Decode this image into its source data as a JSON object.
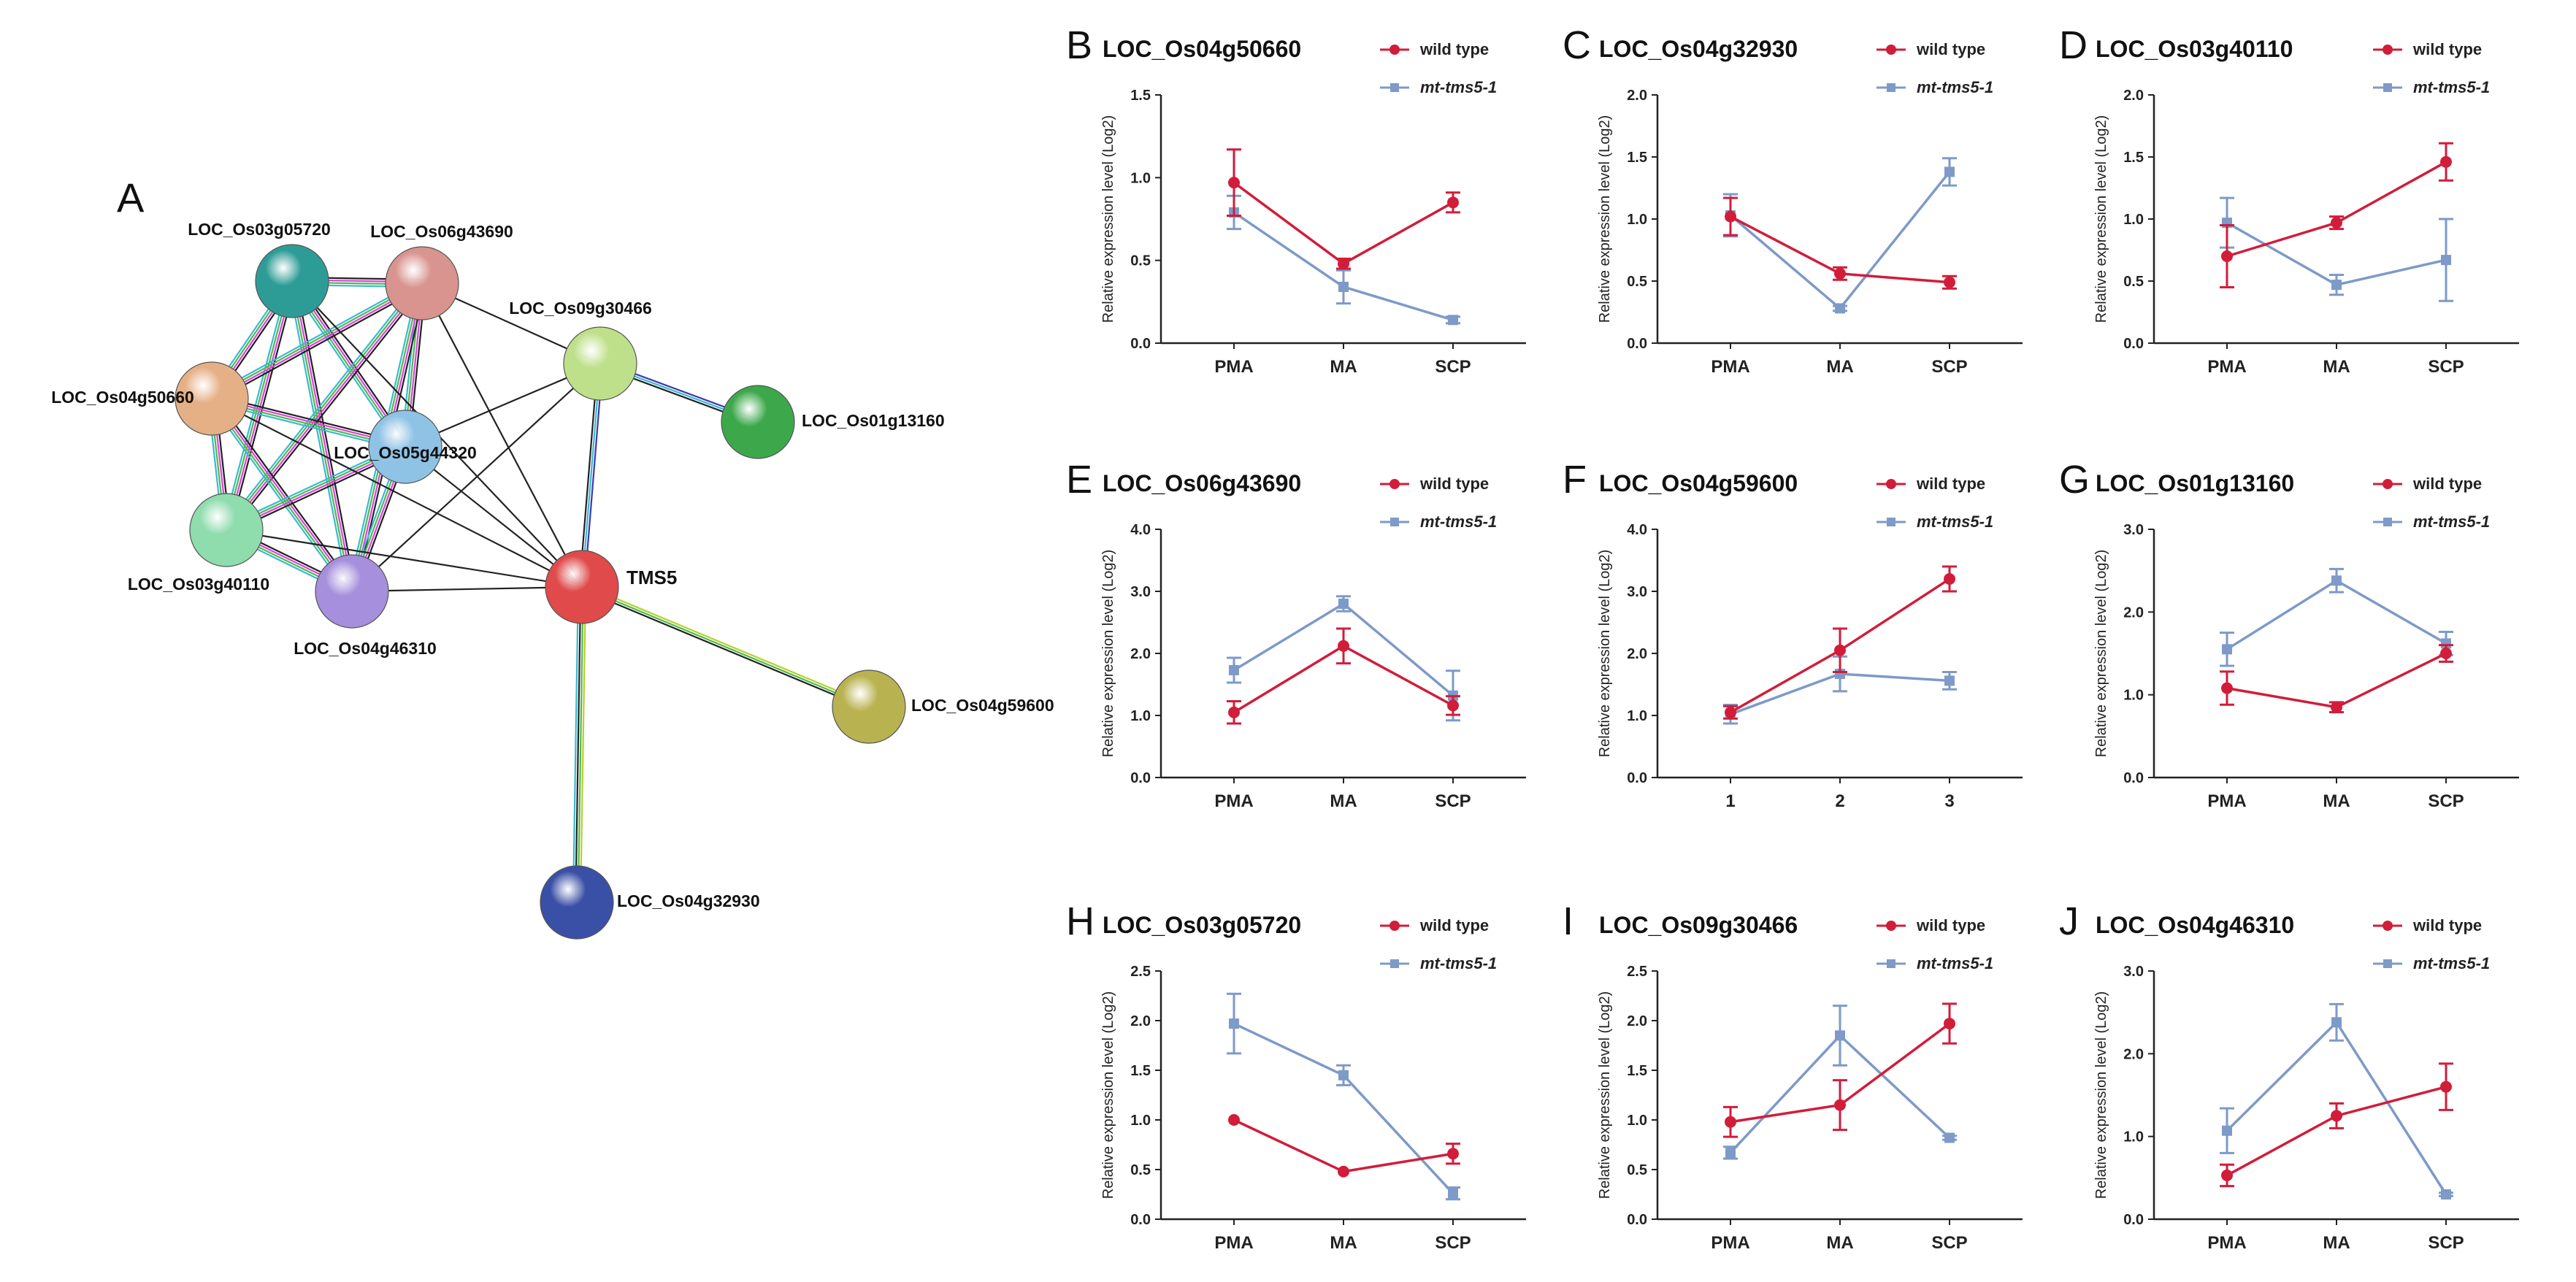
{
  "figure": {
    "network_letter": "A",
    "legend_wild": "wild type",
    "legend_mt": "mt-tms5-1",
    "colors": {
      "wild": "#d11d3a",
      "mt": "#7d9ac8",
      "axis": "#222222",
      "center_label": "#d9486f"
    }
  },
  "network": {
    "nodes": [
      {
        "id": "n_os03g05720",
        "label": "LOC_Os03g05720",
        "color": "#2e9c96"
      },
      {
        "id": "n_os06g43690",
        "label": "LOC_Os06g43690",
        "color": "#d9948f"
      },
      {
        "id": "n_os09g30466",
        "label": "LOC_Os09g30466",
        "color": "#bfe08a"
      },
      {
        "id": "n_os01g13160",
        "label": "LOC_Os01g13160",
        "color": "#3da84b"
      },
      {
        "id": "n_os04g50660",
        "label": "LOC_Os04g50660",
        "color": "#e6b086"
      },
      {
        "id": "n_os05g44320",
        "label": "LOC_Os05g44320",
        "color": "#8fc3e6"
      },
      {
        "id": "n_os03g40110",
        "label": "LOC_Os03g40110",
        "color": "#8fdcad"
      },
      {
        "id": "n_os04g46310",
        "label": "LOC_Os04g46310",
        "color": "#a68fdc"
      },
      {
        "id": "n_tms5",
        "label": "TMS5",
        "color": "#e04a4a"
      },
      {
        "id": "n_os04g59600",
        "label": "LOC_Os04g59600",
        "color": "#b9b250"
      },
      {
        "id": "n_os04g32930",
        "label": "LOC_Os04g32930",
        "color": "#3a4fa6"
      }
    ],
    "edges": [
      {
        "from": "n_os03g05720",
        "to": "n_os06g43690",
        "colors": [
          "#222222",
          "#e040e0",
          "#4dbb4d",
          "#3cb8d0"
        ]
      },
      {
        "from": "n_os03g05720",
        "to": "n_os04g50660",
        "colors": [
          "#222222",
          "#e040e0",
          "#4dbb4d",
          "#3cb8d0"
        ]
      },
      {
        "from": "n_os03g05720",
        "to": "n_os05g44320",
        "colors": [
          "#222222",
          "#e040e0",
          "#4dbb4d",
          "#3cb8d0"
        ]
      },
      {
        "from": "n_os03g05720",
        "to": "n_os03g40110",
        "colors": [
          "#222222",
          "#e040e0",
          "#4dbb4d",
          "#3cb8d0"
        ]
      },
      {
        "from": "n_os03g05720",
        "to": "n_os04g46310",
        "colors": [
          "#222222",
          "#e040e0",
          "#4dbb4d",
          "#3cb8d0"
        ]
      },
      {
        "from": "n_os06g43690",
        "to": "n_os04g50660",
        "colors": [
          "#222222",
          "#e040e0",
          "#4dbb4d",
          "#3cb8d0"
        ]
      },
      {
        "from": "n_os06g43690",
        "to": "n_os05g44320",
        "colors": [
          "#222222",
          "#e040e0",
          "#4dbb4d",
          "#3cb8d0"
        ]
      },
      {
        "from": "n_os06g43690",
        "to": "n_os03g40110",
        "colors": [
          "#222222",
          "#e040e0",
          "#4dbb4d",
          "#3cb8d0"
        ]
      },
      {
        "from": "n_os06g43690",
        "to": "n_os04g46310",
        "colors": [
          "#222222",
          "#e040e0",
          "#4dbb4d",
          "#3cb8d0"
        ]
      },
      {
        "from": "n_os04g50660",
        "to": "n_os05g44320",
        "colors": [
          "#222222",
          "#e040e0",
          "#4dbb4d",
          "#3cb8d0"
        ]
      },
      {
        "from": "n_os04g50660",
        "to": "n_os03g40110",
        "colors": [
          "#222222",
          "#e040e0",
          "#4dbb4d",
          "#3cb8d0"
        ]
      },
      {
        "from": "n_os04g50660",
        "to": "n_os04g46310",
        "colors": [
          "#222222",
          "#e040e0",
          "#4dbb4d",
          "#3cb8d0"
        ]
      },
      {
        "from": "n_os05g44320",
        "to": "n_os03g40110",
        "colors": [
          "#222222",
          "#e040e0",
          "#4dbb4d",
          "#3cb8d0"
        ]
      },
      {
        "from": "n_os05g44320",
        "to": "n_os04g46310",
        "colors": [
          "#222222",
          "#e040e0",
          "#4dbb4d",
          "#3cb8d0"
        ]
      },
      {
        "from": "n_os03g40110",
        "to": "n_os04g46310",
        "colors": [
          "#222222",
          "#e040e0",
          "#4dbb4d",
          "#3cb8d0"
        ]
      },
      {
        "from": "n_os03g05720",
        "to": "n_tms5",
        "colors": [
          "#222222"
        ]
      },
      {
        "from": "n_os06g43690",
        "to": "n_tms5",
        "colors": [
          "#222222"
        ]
      },
      {
        "from": "n_os06g43690",
        "to": "n_os09g30466",
        "colors": [
          "#222222"
        ]
      },
      {
        "from": "n_os05g44320",
        "to": "n_os09g30466",
        "colors": [
          "#222222"
        ]
      },
      {
        "from": "n_os04g50660",
        "to": "n_tms5",
        "colors": [
          "#222222"
        ]
      },
      {
        "from": "n_os05g44320",
        "to": "n_tms5",
        "colors": [
          "#222222"
        ]
      },
      {
        "from": "n_os03g40110",
        "to": "n_tms5",
        "colors": [
          "#222222"
        ]
      },
      {
        "from": "n_os04g46310",
        "to": "n_tms5",
        "colors": [
          "#222222"
        ]
      },
      {
        "from": "n_os04g46310",
        "to": "n_os09g30466",
        "colors": [
          "#222222"
        ]
      },
      {
        "from": "n_os09g30466",
        "to": "n_tms5",
        "colors": [
          "#3a3ab0",
          "#3cb8d0",
          "#222222"
        ]
      },
      {
        "from": "n_os09g30466",
        "to": "n_os01g13160",
        "colors": [
          "#3a3ab0",
          "#3cb8d0",
          "#222222"
        ]
      },
      {
        "from": "n_tms5",
        "to": "n_os04g59600",
        "colors": [
          "#b8cf2a",
          "#4dbb4d",
          "#222222"
        ]
      },
      {
        "from": "n_tms5",
        "to": "n_os04g32930",
        "colors": [
          "#b8cf2a",
          "#4dbb4d",
          "#222222",
          "#3cb8d0"
        ]
      }
    ]
  },
  "chart_data": [
    {
      "letter": "B",
      "title": "LOC_Os04g50660",
      "type": "line",
      "categories": [
        "PMA",
        "MA",
        "SCP"
      ],
      "ylabel": "Relative expression level (Log2)",
      "ylim": [
        0,
        1.5
      ],
      "yticks": [
        0.0,
        0.5,
        1.0,
        1.5
      ],
      "ytick_labels": [
        "0.0",
        "0.5",
        "1.0",
        "1.5"
      ],
      "series": [
        {
          "name": "wild type",
          "values": [
            0.97,
            0.48,
            0.85
          ],
          "errors": [
            0.2,
            0.03,
            0.06
          ]
        },
        {
          "name": "mt-tms5-1",
          "values": [
            0.79,
            0.34,
            0.14
          ],
          "errors": [
            0.1,
            0.1,
            0.02
          ]
        }
      ]
    },
    {
      "letter": "C",
      "title": "LOC_Os04g32930",
      "type": "line",
      "categories": [
        "PMA",
        "MA",
        "SCP"
      ],
      "ylabel": "Relative expression level (Log2)",
      "ylim": [
        0,
        2.0
      ],
      "yticks": [
        0.0,
        0.5,
        1.0,
        1.5,
        2.0
      ],
      "ytick_labels": [
        "0.0",
        "0.5",
        "1.0",
        "1.5",
        "2.0"
      ],
      "series": [
        {
          "name": "wild type",
          "values": [
            1.02,
            0.56,
            0.49
          ],
          "errors": [
            0.15,
            0.05,
            0.05
          ]
        },
        {
          "name": "mt-tms5-1",
          "values": [
            1.03,
            0.28,
            1.38
          ],
          "errors": [
            0.17,
            0.02,
            0.11
          ]
        }
      ]
    },
    {
      "letter": "D",
      "title": "LOC_Os03g40110",
      "type": "line",
      "categories": [
        "PMA",
        "MA",
        "SCP"
      ],
      "ylabel": "Relative expression level (Log2)",
      "ylim": [
        0,
        2.0
      ],
      "yticks": [
        0.0,
        0.5,
        1.0,
        1.5,
        2.0
      ],
      "ytick_labels": [
        "0.0",
        "0.5",
        "1.0",
        "1.5",
        "2.0"
      ],
      "series": [
        {
          "name": "wild type",
          "values": [
            0.7,
            0.97,
            1.46
          ],
          "errors": [
            0.25,
            0.05,
            0.15
          ]
        },
        {
          "name": "mt-tms5-1",
          "values": [
            0.97,
            0.47,
            0.67
          ],
          "errors": [
            0.2,
            0.08,
            0.33
          ]
        }
      ]
    },
    {
      "letter": "E",
      "title": "LOC_Os06g43690",
      "type": "line",
      "categories": [
        "PMA",
        "MA",
        "SCP"
      ],
      "ylabel": "Relative expression level (Log2)",
      "ylim": [
        0,
        4.0
      ],
      "yticks": [
        0.0,
        1.0,
        2.0,
        3.0,
        4.0
      ],
      "ytick_labels": [
        "0.0",
        "1.0",
        "2.0",
        "3.0",
        "4.0"
      ],
      "series": [
        {
          "name": "wild type",
          "values": [
            1.05,
            2.12,
            1.16
          ],
          "errors": [
            0.18,
            0.28,
            0.15
          ]
        },
        {
          "name": "mt-tms5-1",
          "values": [
            1.73,
            2.8,
            1.32
          ],
          "errors": [
            0.2,
            0.12,
            0.4
          ]
        }
      ]
    },
    {
      "letter": "F",
      "title": "LOC_Os04g59600",
      "type": "line",
      "categories": [
        "1",
        "2",
        "3"
      ],
      "ylabel": "Relative expression level (Log2)",
      "ylim": [
        0,
        4.0
      ],
      "yticks": [
        0.0,
        1.0,
        2.0,
        3.0,
        4.0
      ],
      "ytick_labels": [
        "0.0",
        "1.0",
        "2.0",
        "3.0",
        "4.0"
      ],
      "series": [
        {
          "name": "wild type",
          "values": [
            1.05,
            2.05,
            3.2
          ],
          "errors": [
            0.1,
            0.35,
            0.2
          ]
        },
        {
          "name": "mt-tms5-1",
          "values": [
            1.02,
            1.67,
            1.56
          ],
          "errors": [
            0.15,
            0.28,
            0.14
          ]
        }
      ]
    },
    {
      "letter": "G",
      "title": "LOC_Os01g13160",
      "type": "line",
      "categories": [
        "PMA",
        "MA",
        "SCP"
      ],
      "ylabel": "Relative expression level (Log2)",
      "ylim": [
        0,
        3.0
      ],
      "yticks": [
        0.0,
        1.0,
        2.0,
        3.0
      ],
      "ytick_labels": [
        "0.0",
        "1.0",
        "2.0",
        "3.0"
      ],
      "series": [
        {
          "name": "wild type",
          "values": [
            1.08,
            0.85,
            1.5
          ],
          "errors": [
            0.2,
            0.06,
            0.1
          ]
        },
        {
          "name": "mt-tms5-1",
          "values": [
            1.55,
            2.38,
            1.62
          ],
          "errors": [
            0.2,
            0.14,
            0.14
          ]
        }
      ]
    },
    {
      "letter": "H",
      "title": "LOC_Os03g05720",
      "type": "line",
      "categories": [
        "PMA",
        "MA",
        "SCP"
      ],
      "ylabel": "Relative expression level (Log2)",
      "ylim": [
        0,
        2.5
      ],
      "yticks": [
        0.0,
        0.5,
        1.0,
        1.5,
        2.0,
        2.5
      ],
      "ytick_labels": [
        "0.0",
        "0.5",
        "1.0",
        "1.5",
        "2.0",
        "2.5"
      ],
      "series": [
        {
          "name": "wild type",
          "values": [
            1.0,
            0.48,
            0.66
          ],
          "errors": [
            0.0,
            0.0,
            0.1
          ]
        },
        {
          "name": "mt-tms5-1",
          "values": [
            1.97,
            1.45,
            0.26
          ],
          "errors": [
            0.3,
            0.1,
            0.06
          ]
        }
      ]
    },
    {
      "letter": "I",
      "title": "LOC_Os09g30466",
      "type": "line",
      "categories": [
        "PMA",
        "MA",
        "SCP"
      ],
      "ylabel": "Relative expression level (Log2)",
      "ylim": [
        0,
        2.5
      ],
      "yticks": [
        0.0,
        0.5,
        1.0,
        1.5,
        2.0,
        2.5
      ],
      "ytick_labels": [
        "0.0",
        "0.5",
        "1.0",
        "1.5",
        "2.0",
        "2.5"
      ],
      "series": [
        {
          "name": "wild type",
          "values": [
            0.98,
            1.15,
            1.97
          ],
          "errors": [
            0.15,
            0.25,
            0.2
          ]
        },
        {
          "name": "mt-tms5-1",
          "values": [
            0.67,
            1.85,
            0.82
          ],
          "errors": [
            0.06,
            0.3,
            0.02
          ]
        }
      ]
    },
    {
      "letter": "J",
      "title": "LOC_Os04g46310",
      "type": "line",
      "categories": [
        "PMA",
        "MA",
        "SCP"
      ],
      "ylabel": "Relative expression level (Log2)",
      "ylim": [
        0,
        3.0
      ],
      "yticks": [
        0.0,
        1.0,
        2.0,
        3.0
      ],
      "ytick_labels": [
        "0.0",
        "1.0",
        "2.0",
        "3.0"
      ],
      "series": [
        {
          "name": "wild type",
          "values": [
            0.53,
            1.25,
            1.6
          ],
          "errors": [
            0.13,
            0.15,
            0.28
          ]
        },
        {
          "name": "mt-tms5-1",
          "values": [
            1.07,
            2.38,
            0.3
          ],
          "errors": [
            0.27,
            0.22,
            0.02
          ]
        }
      ]
    }
  ]
}
